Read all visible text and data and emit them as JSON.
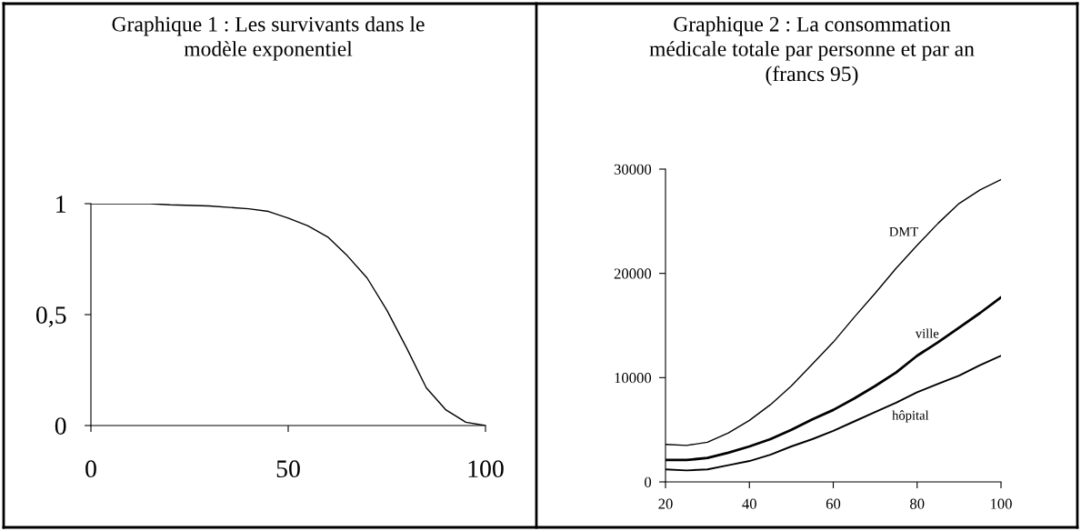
{
  "chart_data": [
    {
      "type": "line",
      "title": "Graphique 1 : Les survivants dans le\nmodèle exponentiel",
      "x": [
        0,
        15,
        20,
        30,
        40,
        45,
        50,
        55,
        60,
        65,
        70,
        75,
        80,
        85,
        90,
        95,
        100
      ],
      "series": [
        {
          "color": "#000000",
          "values": [
            1,
            1,
            0.995,
            0.99,
            0.977,
            0.965,
            0.935,
            0.9,
            0.85,
            0.765,
            0.665,
            0.52,
            0.35,
            0.17,
            0.07,
            0.015,
            0
          ]
        }
      ],
      "xlim": [
        0,
        100
      ],
      "ylim": [
        0,
        1
      ],
      "xticks": [
        0,
        50,
        100
      ],
      "yticks": [
        0,
        {
          "value": 0.5,
          "label": "0,5"
        },
        1
      ],
      "grid": false,
      "legend": false,
      "marker": "none",
      "line_style": "solid"
    },
    {
      "type": "line",
      "title": "Graphique 2 : La consommation\nmédicale totale par personne et par an\n(francs 95)",
      "x": [
        20,
        25,
        30,
        35,
        40,
        45,
        50,
        55,
        60,
        65,
        70,
        75,
        80,
        85,
        90,
        95,
        100
      ],
      "series": [
        {
          "name": "DMT",
          "color": "#000000",
          "values": [
            3600,
            3500,
            3800,
            4700,
            5900,
            7400,
            9200,
            11300,
            13400,
            15800,
            18100,
            20500,
            22700,
            24800,
            26700,
            28000,
            29000
          ]
        },
        {
          "name": "ville",
          "color": "#000000",
          "values": [
            2100,
            2100,
            2300,
            2800,
            3400,
            4100,
            5000,
            6000,
            6900,
            8000,
            9200,
            10500,
            12100,
            13400,
            14800,
            16200,
            17700
          ]
        },
        {
          "name": "hôpital",
          "color": "#000000",
          "values": [
            1200,
            1100,
            1200,
            1600,
            2000,
            2600,
            3400,
            4100,
            4900,
            5800,
            6700,
            7600,
            8600,
            9400,
            10200,
            11200,
            12100
          ]
        }
      ],
      "xlim": [
        20,
        100
      ],
      "ylim": [
        0,
        30000
      ],
      "xticks": [
        20,
        40,
        60,
        80,
        100
      ],
      "yticks": [
        0,
        10000,
        20000,
        30000
      ],
      "grid": false,
      "legend": false,
      "marker": "none",
      "line_style": "solid"
    }
  ]
}
